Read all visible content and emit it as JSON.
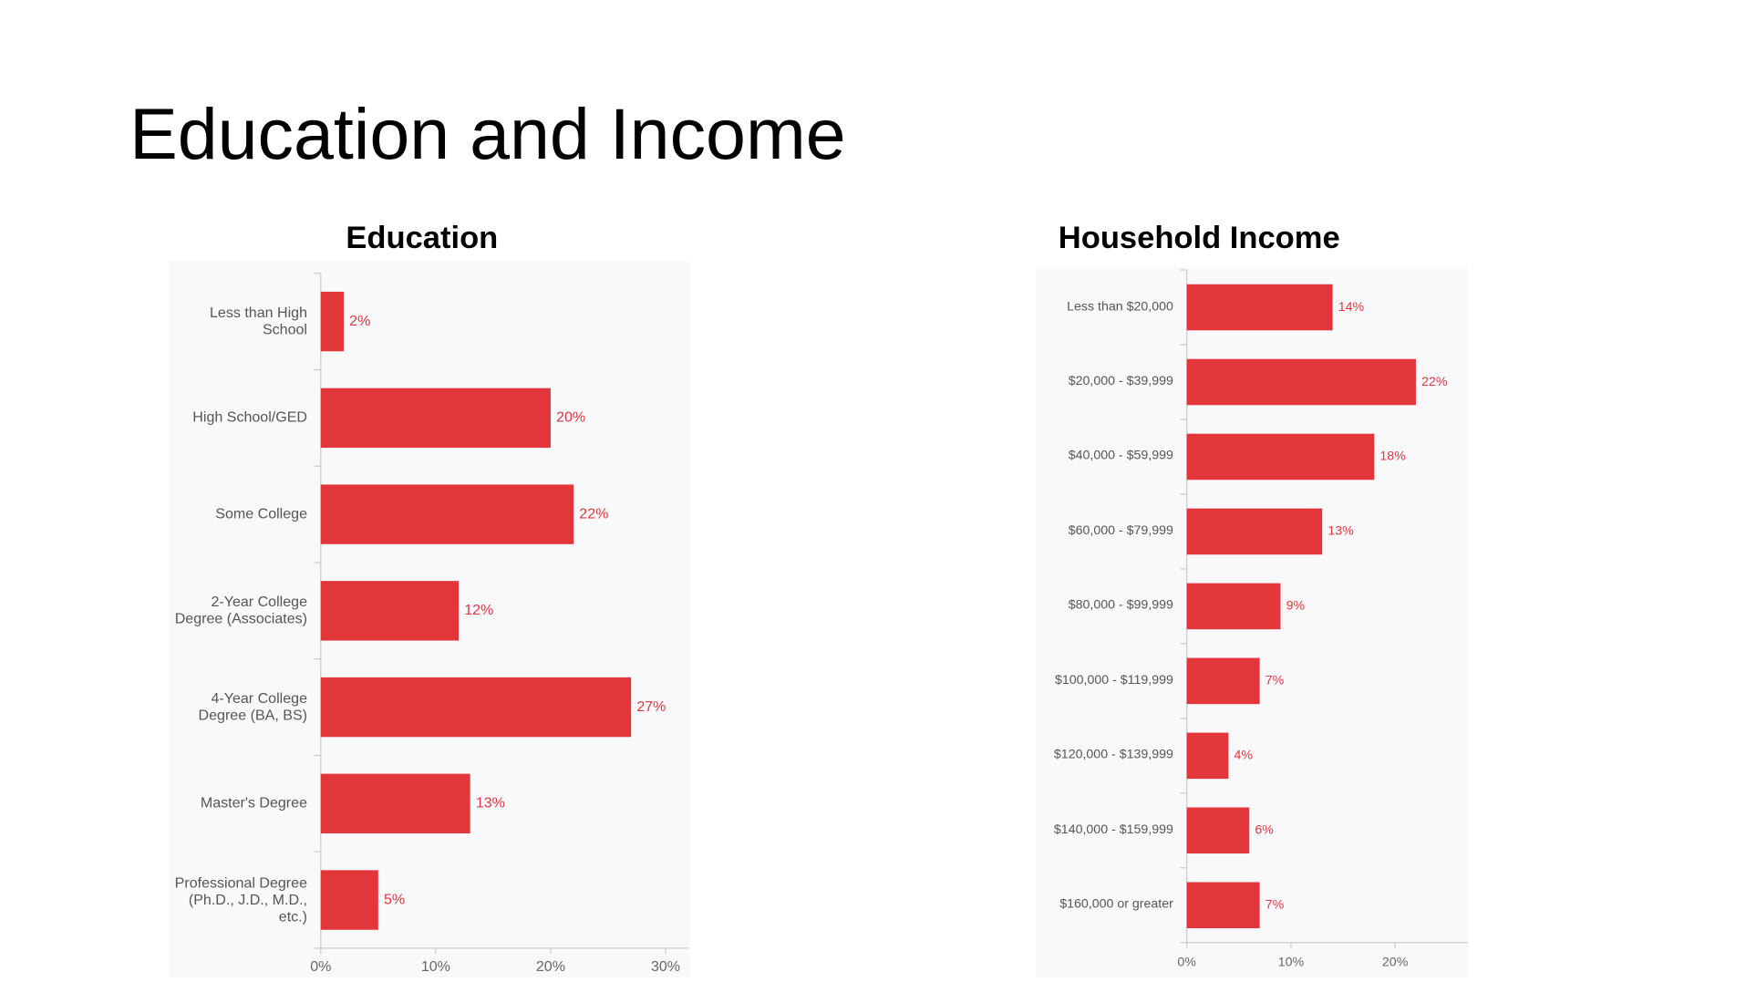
{
  "title": "Education and Income",
  "chart_data": [
    {
      "type": "bar",
      "orientation": "horizontal",
      "title": "Education",
      "categories": [
        "Less than High School",
        "High School/GED",
        "Some College",
        "2-Year College Degree (Associates)",
        "4-Year College Degree (BA, BS)",
        "Master's Degree",
        "Professional Degree (Ph.D., J.D., M.D., etc.)"
      ],
      "values": [
        2,
        20,
        22,
        12,
        27,
        13,
        5
      ],
      "value_labels": [
        "2%",
        "20%",
        "22%",
        "12%",
        "27%",
        "13%",
        "5%"
      ],
      "color": "#e3363b",
      "xlim": [
        0,
        32
      ],
      "xticks": [
        {
          "value": 0,
          "label": "0%"
        },
        {
          "value": 10,
          "label": "10%"
        },
        {
          "value": 20,
          "label": "20%"
        },
        {
          "value": 30,
          "label": "30%"
        }
      ]
    },
    {
      "type": "bar",
      "orientation": "horizontal",
      "title": "Household Income",
      "categories": [
        "Less than $20,000",
        "$20,000 - $39,999",
        "$40,000 - $59,999",
        "$60,000 - $79,999",
        "$80,000 - $99,999",
        "$100,000 - $119,999",
        "$120,000 - $139,999",
        "$140,000 - $159,999",
        "$160,000 or greater"
      ],
      "values": [
        14,
        22,
        18,
        13,
        9,
        7,
        4,
        6,
        7
      ],
      "value_labels": [
        "14%",
        "22%",
        "18%",
        "13%",
        "9%",
        "7%",
        "4%",
        "6%",
        "7%"
      ],
      "color": "#e3363b",
      "xlim": [
        0,
        27
      ],
      "xticks": [
        {
          "value": 0,
          "label": "0%"
        },
        {
          "value": 10,
          "label": "10%"
        },
        {
          "value": 20,
          "label": "20%"
        }
      ]
    }
  ]
}
